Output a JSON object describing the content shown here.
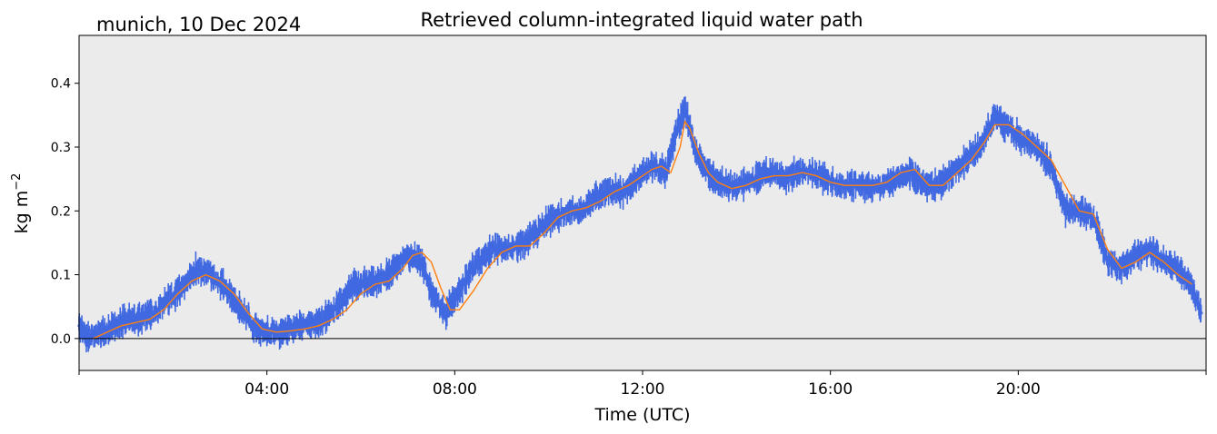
{
  "chart_data": {
    "type": "line",
    "title": "Retrieved column-integrated liquid water path",
    "subtitle": "munich, 10 Dec 2024",
    "xlabel": "Time (UTC)",
    "ylabel_base": "kg m",
    "ylabel_exp": "−2",
    "x_unit": "hours UTC",
    "xlim": [
      0,
      24
    ],
    "ylim": [
      -0.05,
      0.475
    ],
    "xticks": [
      {
        "value": 4,
        "label": "04:00"
      },
      {
        "value": 8,
        "label": "08:00"
      },
      {
        "value": 12,
        "label": "12:00"
      },
      {
        "value": 16,
        "label": "16:00"
      },
      {
        "value": 20,
        "label": "20:00"
      }
    ],
    "yticks": [
      {
        "value": 0.0,
        "label": "0.0"
      },
      {
        "value": 0.1,
        "label": "0.1"
      },
      {
        "value": 0.2,
        "label": "0.2"
      },
      {
        "value": 0.3,
        "label": "0.3"
      },
      {
        "value": 0.4,
        "label": "0.4"
      }
    ],
    "zero_line": true,
    "background": "#ebebeb",
    "series": [
      {
        "style": "dense points",
        "color": "#4169e1",
        "x": [
          0.0,
          0.2,
          0.5,
          0.8,
          1.0,
          1.3,
          1.6,
          1.9,
          2.2,
          2.5,
          2.8,
          3.1,
          3.4,
          3.7,
          4.0,
          4.3,
          4.6,
          4.9,
          5.2,
          5.5,
          5.8,
          6.1,
          6.4,
          6.7,
          7.0,
          7.3,
          7.5,
          7.8,
          8.0,
          8.3,
          8.6,
          8.9,
          9.2,
          9.5,
          9.8,
          10.1,
          10.4,
          10.7,
          11.0,
          11.3,
          11.6,
          11.9,
          12.2,
          12.5,
          12.7,
          12.9,
          13.1,
          13.3,
          13.5,
          13.8,
          14.1,
          14.4,
          14.7,
          15.0,
          15.3,
          15.6,
          15.9,
          16.2,
          16.5,
          16.8,
          17.1,
          17.4,
          17.7,
          18.0,
          18.3,
          18.6,
          18.9,
          19.2,
          19.5,
          19.8,
          20.1,
          20.4,
          20.7,
          21.0,
          21.3,
          21.6,
          21.9,
          22.2,
          22.5,
          22.8,
          23.1,
          23.4,
          23.7,
          23.9
        ],
        "values": [
          0.02,
          0.0,
          0.01,
          0.02,
          0.03,
          0.03,
          0.04,
          0.06,
          0.08,
          0.11,
          0.1,
          0.08,
          0.05,
          0.02,
          0.01,
          0.01,
          0.02,
          0.02,
          0.03,
          0.05,
          0.08,
          0.09,
          0.09,
          0.11,
          0.13,
          0.12,
          0.07,
          0.04,
          0.06,
          0.1,
          0.13,
          0.14,
          0.14,
          0.15,
          0.17,
          0.19,
          0.2,
          0.2,
          0.22,
          0.23,
          0.23,
          0.25,
          0.27,
          0.26,
          0.32,
          0.36,
          0.3,
          0.27,
          0.25,
          0.24,
          0.24,
          0.25,
          0.26,
          0.25,
          0.26,
          0.26,
          0.25,
          0.24,
          0.24,
          0.24,
          0.24,
          0.25,
          0.26,
          0.24,
          0.24,
          0.26,
          0.28,
          0.3,
          0.35,
          0.33,
          0.31,
          0.3,
          0.27,
          0.2,
          0.2,
          0.19,
          0.12,
          0.11,
          0.13,
          0.14,
          0.12,
          0.11,
          0.08,
          0.04
        ]
      },
      {
        "style": "smoothed line",
        "color": "#ff7f0e",
        "x": [
          0.3,
          0.6,
          0.9,
          1.2,
          1.5,
          1.8,
          2.1,
          2.4,
          2.7,
          3.0,
          3.3,
          3.6,
          3.9,
          4.2,
          4.5,
          4.8,
          5.1,
          5.4,
          5.7,
          6.0,
          6.3,
          6.6,
          6.9,
          7.1,
          7.3,
          7.5,
          7.7,
          7.9,
          8.1,
          8.4,
          8.7,
          9.0,
          9.3,
          9.6,
          9.9,
          10.2,
          10.5,
          10.8,
          11.1,
          11.4,
          11.7,
          12.0,
          12.2,
          12.4,
          12.6,
          12.8,
          12.9,
          13.0,
          13.2,
          13.4,
          13.6,
          13.9,
          14.2,
          14.5,
          14.8,
          15.1,
          15.4,
          15.7,
          16.0,
          16.3,
          16.6,
          16.9,
          17.2,
          17.5,
          17.8,
          18.1,
          18.4,
          18.7,
          19.0,
          19.3,
          19.5,
          19.8,
          20.1,
          20.4,
          20.7,
          21.0,
          21.3,
          21.6,
          21.9,
          22.2,
          22.5,
          22.8,
          23.1,
          23.4,
          23.7
        ],
        "values": [
          0.0,
          0.01,
          0.02,
          0.025,
          0.03,
          0.045,
          0.07,
          0.09,
          0.1,
          0.09,
          0.07,
          0.04,
          0.015,
          0.01,
          0.012,
          0.015,
          0.02,
          0.03,
          0.045,
          0.07,
          0.085,
          0.09,
          0.11,
          0.13,
          0.135,
          0.12,
          0.08,
          0.045,
          0.045,
          0.075,
          0.11,
          0.135,
          0.145,
          0.145,
          0.165,
          0.19,
          0.2,
          0.205,
          0.215,
          0.23,
          0.24,
          0.255,
          0.265,
          0.27,
          0.26,
          0.3,
          0.34,
          0.33,
          0.29,
          0.26,
          0.245,
          0.235,
          0.24,
          0.25,
          0.255,
          0.255,
          0.26,
          0.255,
          0.245,
          0.24,
          0.24,
          0.24,
          0.245,
          0.26,
          0.265,
          0.24,
          0.24,
          0.26,
          0.28,
          0.31,
          0.335,
          0.335,
          0.32,
          0.3,
          0.28,
          0.24,
          0.2,
          0.195,
          0.14,
          0.11,
          0.12,
          0.135,
          0.12,
          0.1,
          0.085
        ]
      }
    ]
  }
}
